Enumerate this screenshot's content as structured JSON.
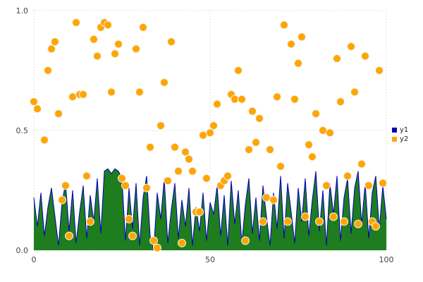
{
  "chart_data": {
    "type": "scatter",
    "title": "",
    "xlabel": "",
    "ylabel": "",
    "xlim": [
      0,
      100
    ],
    "ylim": [
      0,
      1.0
    ],
    "xticks": {
      "values": [
        0,
        50,
        100
      ],
      "labels": [
        "0",
        "50",
        "100"
      ]
    },
    "yticks": {
      "values": [
        0,
        0.5,
        1.0
      ],
      "labels": [
        "0.0",
        "0.5",
        "1.0"
      ]
    },
    "grid": "dotted",
    "grid_color": "#c8c8c8",
    "legend_position": "right-outside",
    "series": [
      {
        "name": "y1",
        "type": "area",
        "fill_color": "#1e7d1e",
        "line_color": "#0000b8",
        "swatch": "#0000b8",
        "x_start": 0,
        "x_step": 1,
        "values": [
          0.22,
          0.1,
          0.24,
          0.06,
          0.18,
          0.26,
          0.14,
          0.02,
          0.2,
          0.28,
          0.08,
          0.25,
          0.03,
          0.16,
          0.27,
          0.05,
          0.23,
          0.12,
          0.3,
          0.07,
          0.33,
          0.34,
          0.32,
          0.34,
          0.33,
          0.3,
          0.04,
          0.26,
          0.09,
          0.28,
          0.02,
          0.22,
          0.31,
          0.06,
          0.0,
          0.24,
          0.13,
          0.3,
          0.03,
          0.17,
          0.28,
          0.05,
          0.21,
          0.1,
          0.26,
          0.02,
          0.18,
          0.08,
          0.24,
          0.04,
          0.2,
          0.15,
          0.27,
          0.06,
          0.23,
          0.02,
          0.29,
          0.11,
          0.25,
          0.03,
          0.19,
          0.3,
          0.07,
          0.22,
          0.04,
          0.27,
          0.14,
          0.02,
          0.24,
          0.09,
          0.31,
          0.05,
          0.28,
          0.16,
          0.03,
          0.26,
          0.12,
          0.3,
          0.06,
          0.21,
          0.33,
          0.08,
          0.25,
          0.02,
          0.28,
          0.15,
          0.31,
          0.04,
          0.22,
          0.3,
          0.07,
          0.26,
          0.33,
          0.11,
          0.28,
          0.05,
          0.24,
          0.31,
          0.09,
          0.27,
          0.13
        ]
      },
      {
        "name": "y2",
        "type": "scatter",
        "color": "#ffa500",
        "point_stroke": "#f2f2f2",
        "swatch": "#ffa500",
        "points": [
          [
            0,
            0.62
          ],
          [
            1,
            0.59
          ],
          [
            3,
            0.46
          ],
          [
            4,
            0.75
          ],
          [
            5,
            0.84
          ],
          [
            6,
            0.87
          ],
          [
            7,
            0.57
          ],
          [
            8,
            0.21
          ],
          [
            9,
            0.27
          ],
          [
            10,
            0.06
          ],
          [
            11,
            0.64
          ],
          [
            12,
            0.95
          ],
          [
            13,
            0.65
          ],
          [
            14,
            0.65
          ],
          [
            15,
            0.31
          ],
          [
            16,
            0.12
          ],
          [
            17,
            0.88
          ],
          [
            18,
            0.81
          ],
          [
            19,
            0.93
          ],
          [
            20,
            0.95
          ],
          [
            21,
            0.94
          ],
          [
            22,
            0.66
          ],
          [
            23,
            0.82
          ],
          [
            24,
            0.86
          ],
          [
            25,
            0.3
          ],
          [
            26,
            0.27
          ],
          [
            27,
            0.13
          ],
          [
            28,
            0.06
          ],
          [
            29,
            0.84
          ],
          [
            30,
            0.66
          ],
          [
            31,
            0.93
          ],
          [
            32,
            0.26
          ],
          [
            33,
            0.43
          ],
          [
            34,
            0.04
          ],
          [
            35,
            0.01
          ],
          [
            36,
            0.52
          ],
          [
            37,
            0.7
          ],
          [
            38,
            0.29
          ],
          [
            39,
            0.87
          ],
          [
            40,
            0.43
          ],
          [
            41,
            0.33
          ],
          [
            42,
            0.03
          ],
          [
            43,
            0.41
          ],
          [
            44,
            0.38
          ],
          [
            45,
            0.33
          ],
          [
            46,
            0.16
          ],
          [
            47,
            0.16
          ],
          [
            48,
            0.48
          ],
          [
            49,
            0.3
          ],
          [
            50,
            0.49
          ],
          [
            51,
            0.52
          ],
          [
            52,
            0.61
          ],
          [
            53,
            0.27
          ],
          [
            54,
            0.29
          ],
          [
            55,
            0.31
          ],
          [
            56,
            0.65
          ],
          [
            57,
            0.63
          ],
          [
            58,
            0.75
          ],
          [
            59,
            0.63
          ],
          [
            60,
            0.04
          ],
          [
            61,
            0.42
          ],
          [
            62,
            0.58
          ],
          [
            63,
            0.45
          ],
          [
            64,
            0.55
          ],
          [
            65,
            0.12
          ],
          [
            66,
            0.22
          ],
          [
            67,
            0.42
          ],
          [
            68,
            0.21
          ],
          [
            69,
            0.64
          ],
          [
            70,
            0.35
          ],
          [
            71,
            0.94
          ],
          [
            72,
            0.12
          ],
          [
            73,
            0.86
          ],
          [
            74,
            0.63
          ],
          [
            75,
            0.78
          ],
          [
            76,
            0.89
          ],
          [
            77,
            0.14
          ],
          [
            78,
            0.44
          ],
          [
            79,
            0.39
          ],
          [
            80,
            0.57
          ],
          [
            81,
            0.12
          ],
          [
            82,
            0.5
          ],
          [
            83,
            0.27
          ],
          [
            84,
            0.49
          ],
          [
            85,
            0.14
          ],
          [
            86,
            0.8
          ],
          [
            87,
            0.62
          ],
          [
            88,
            0.12
          ],
          [
            89,
            0.31
          ],
          [
            90,
            0.85
          ],
          [
            91,
            0.66
          ],
          [
            92,
            0.11
          ],
          [
            93,
            0.36
          ],
          [
            94,
            0.81
          ],
          [
            95,
            0.27
          ],
          [
            96,
            0.12
          ],
          [
            97,
            0.1
          ],
          [
            98,
            0.75
          ],
          [
            99,
            0.28
          ]
        ]
      }
    ]
  }
}
